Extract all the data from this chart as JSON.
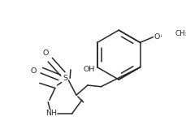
{
  "background": "#ffffff",
  "line_color": "#282828",
  "line_width": 1.1,
  "font_size": 6.8,
  "figsize": [
    2.29,
    1.7
  ],
  "dpi": 100,
  "xlim": [
    0,
    229
  ],
  "ylim": [
    0,
    170
  ]
}
